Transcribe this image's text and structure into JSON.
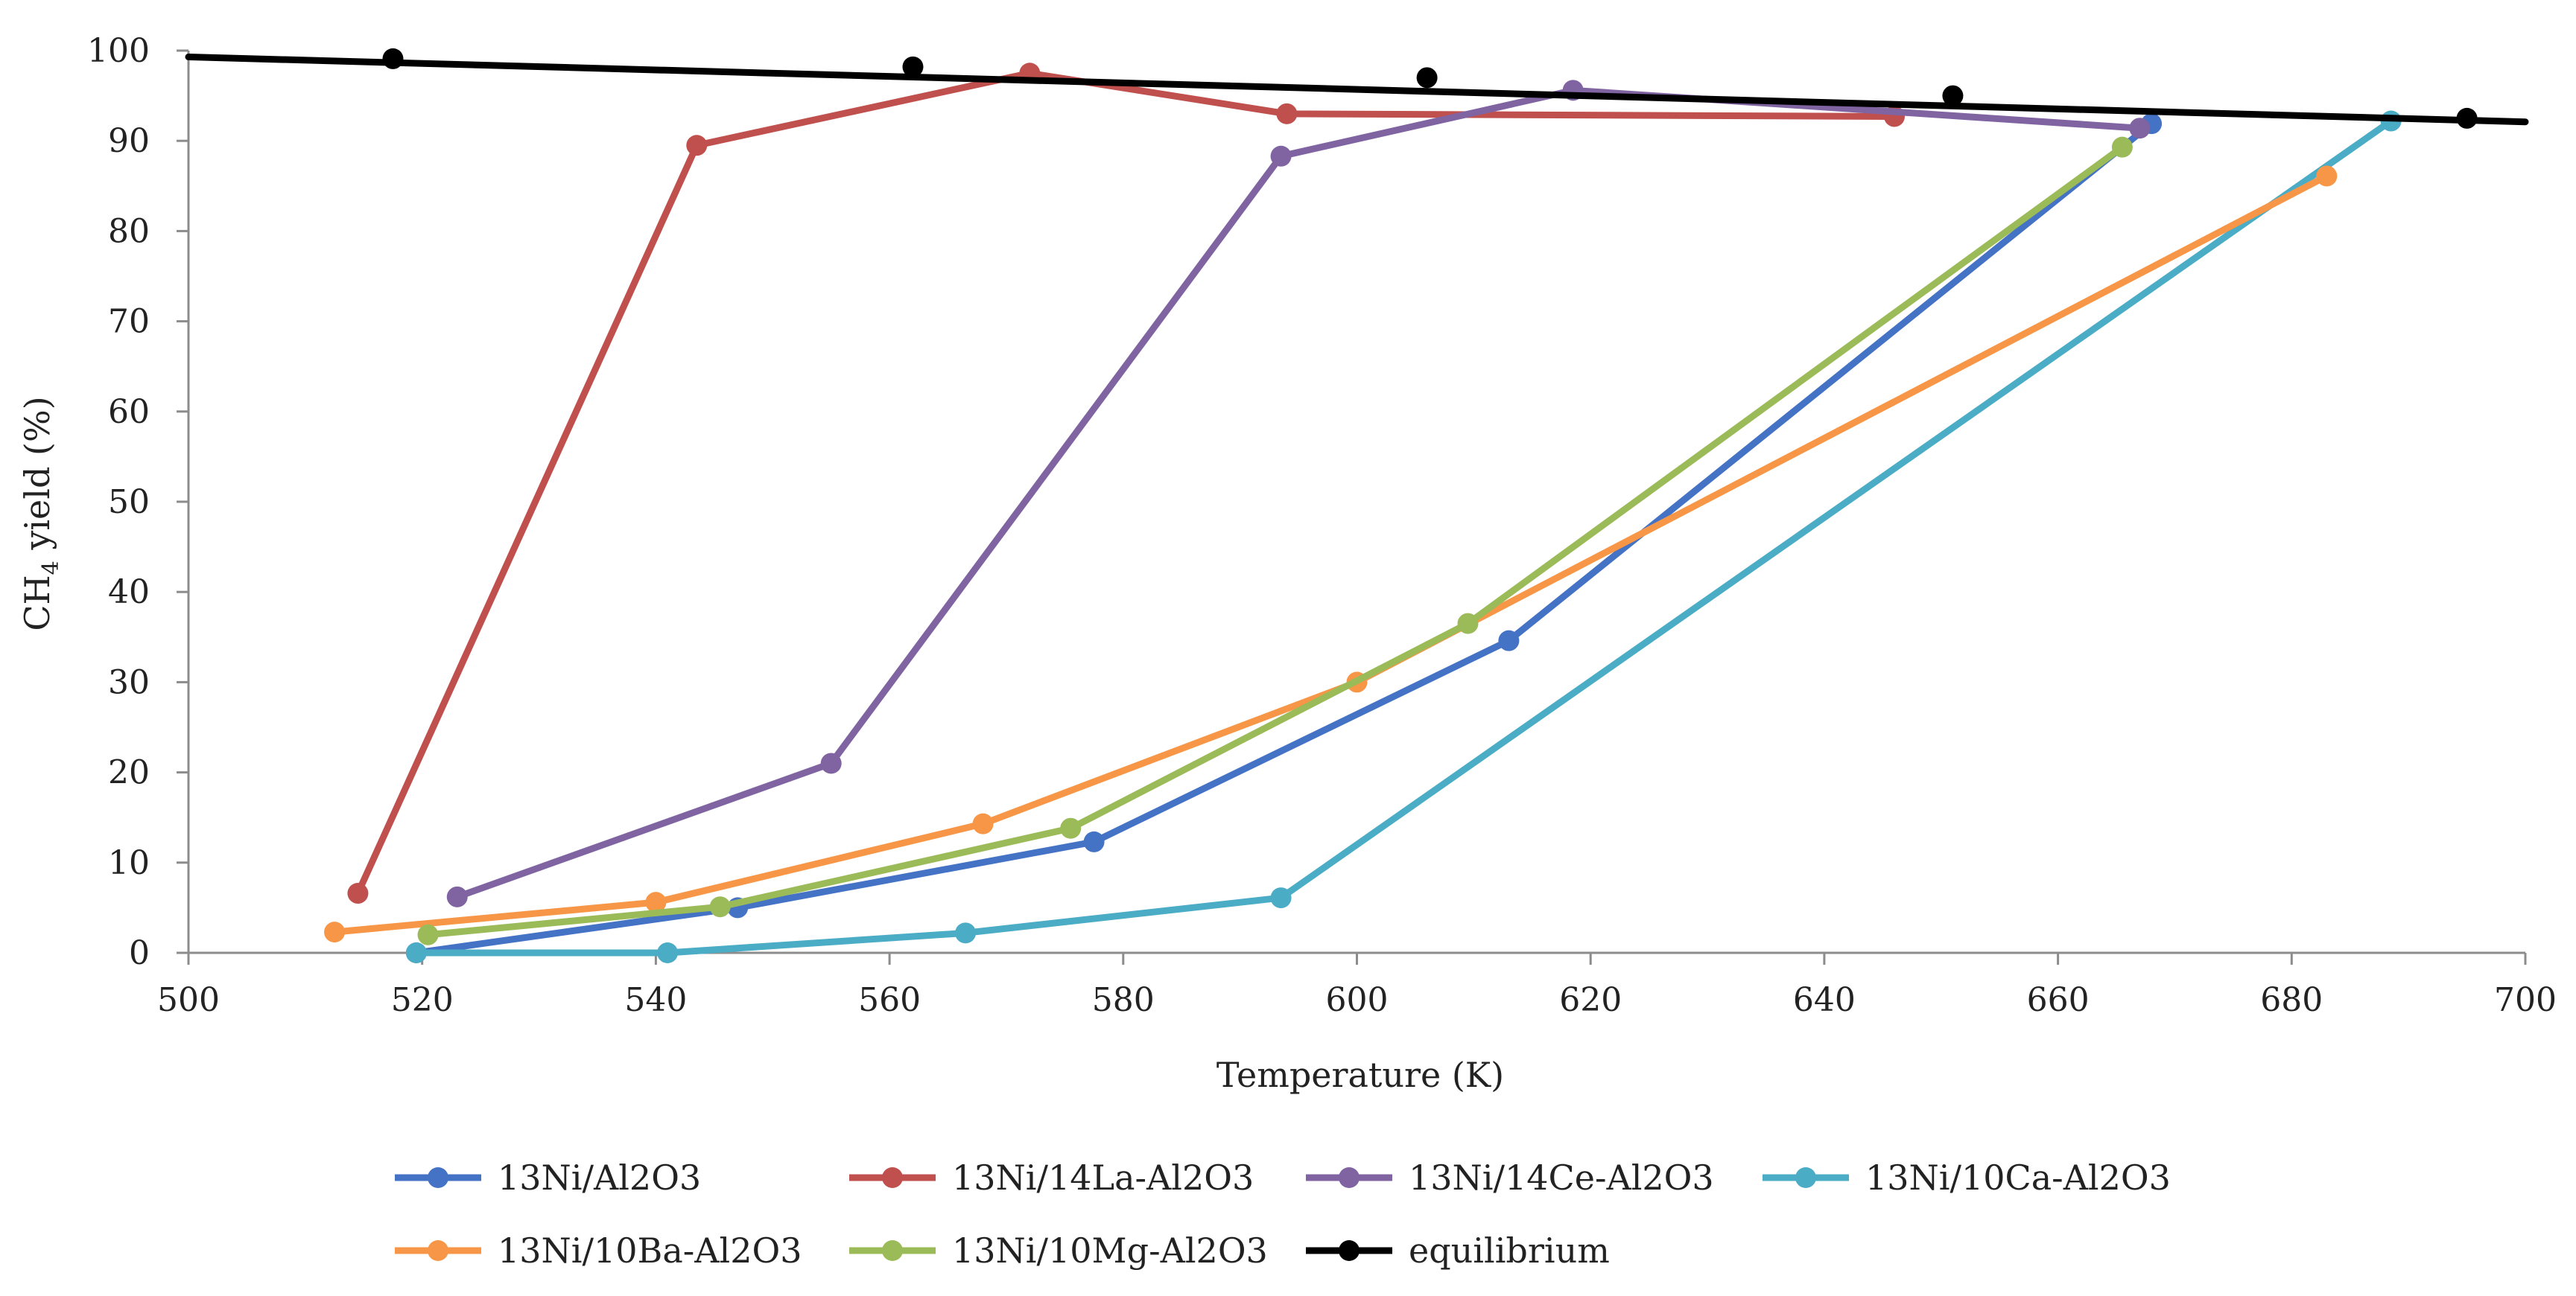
{
  "chart_data": {
    "type": "line",
    "title": "",
    "xlabel": "Temperature (K)",
    "ylabel_parts": {
      "pre": "CH",
      "sub": "4",
      "post": " yield (%)"
    },
    "xlim": [
      500,
      700
    ],
    "ylim": [
      0,
      100
    ],
    "x_ticks": [
      500,
      520,
      540,
      560,
      580,
      600,
      620,
      640,
      660,
      680,
      700
    ],
    "y_ticks": [
      0,
      10,
      20,
      30,
      40,
      50,
      60,
      70,
      80,
      90,
      100
    ],
    "grid": false,
    "legend_position": "bottom",
    "series": [
      {
        "name": "13Ni/Al2O3",
        "color": "#4472C4",
        "x": [
          519.5,
          547,
          577.5,
          613,
          668
        ],
        "y": [
          0,
          5,
          12.3,
          34.6,
          91.9
        ]
      },
      {
        "name": "13Ni/14La-Al2O3",
        "color": "#C0504D",
        "x": [
          514.5,
          543.5,
          572,
          594,
          646
        ],
        "y": [
          6.6,
          89.5,
          97.5,
          93,
          92.7
        ]
      },
      {
        "name": "13Ni/14Ce-Al2O3",
        "color": "#8064A2",
        "x": [
          523,
          555,
          593.5,
          618.5,
          667
        ],
        "y": [
          6.2,
          21,
          88.3,
          95.6,
          91.4
        ]
      },
      {
        "name": "13Ni/10Ca-Al2O3",
        "color": "#4BACC6",
        "x": [
          519.5,
          541,
          566.5,
          593.5,
          688.5
        ],
        "y": [
          0,
          0,
          2.2,
          6.1,
          92.2
        ]
      },
      {
        "name": "13Ni/10Ba-Al2O3",
        "color": "#F79646",
        "x": [
          512.5,
          540,
          568,
          600,
          683
        ],
        "y": [
          2.3,
          5.6,
          14.3,
          30,
          86.1
        ]
      },
      {
        "name": "13Ni/10Mg-Al2O3",
        "color": "#9BBB59",
        "x": [
          520.5,
          545.5,
          575.5,
          609.5,
          665.5
        ],
        "y": [
          2,
          5.1,
          13.8,
          36.5,
          89.3
        ]
      },
      {
        "name": "equilibrium",
        "color": "#000000",
        "x": [
          517.5,
          562,
          606,
          651,
          695
        ],
        "y": [
          99.1,
          98.2,
          97,
          95,
          92.5
        ],
        "line_x": [
          500,
          700
        ],
        "line_y": [
          99.3,
          92.1
        ]
      }
    ]
  }
}
